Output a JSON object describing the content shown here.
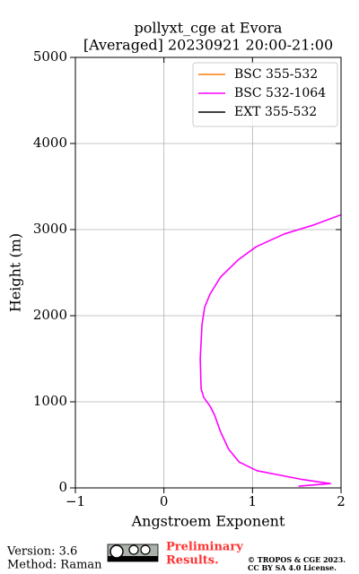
{
  "chart_data": {
    "type": "line",
    "title": "pollyxt_cge at Evora",
    "subtitle": "[Averaged] 20230921 20:00-21:00",
    "xlabel": "Angstroem Exponent",
    "ylabel": "Height (m)",
    "heights": [
      20,
      50,
      100,
      150,
      200,
      300,
      450,
      650,
      850,
      950,
      1050,
      1150,
      1500,
      1900,
      2100,
      2250,
      2450,
      2650,
      2800,
      2950,
      3050,
      3180
    ],
    "series": [
      {
        "name": "BSC 355-532",
        "color": "#ff7f0e",
        "values": [
          null,
          null,
          null,
          null,
          null,
          null,
          null,
          null,
          null,
          null,
          null,
          null,
          null,
          null,
          null,
          null,
          null,
          null,
          null,
          null,
          null,
          null
        ]
      },
      {
        "name": "BSC 532-1064",
        "color": "#ff00ff",
        "values": [
          1.52,
          1.88,
          1.55,
          1.3,
          1.05,
          0.85,
          0.73,
          0.64,
          0.57,
          0.52,
          0.45,
          0.42,
          0.41,
          0.43,
          0.46,
          0.52,
          0.64,
          0.84,
          1.04,
          1.36,
          1.68,
          2.02
        ]
      },
      {
        "name": "EXT 355-532",
        "color": "#000000",
        "values": [
          null,
          null,
          null,
          null,
          null,
          null,
          null,
          null,
          null,
          null,
          null,
          null,
          null,
          null,
          null,
          null,
          null,
          null,
          null,
          null,
          null,
          null
        ]
      }
    ],
    "xlim": [
      -1,
      2
    ],
    "xticks": [
      {
        "value": -1,
        "label": "−1"
      },
      0,
      1,
      2
    ],
    "ylim": [
      0,
      5000
    ],
    "yticks": [
      0,
      1000,
      2000,
      3000,
      4000,
      5000
    ],
    "grid": true,
    "legend": "upper right"
  },
  "footer": {
    "version": "Version: 3.6",
    "method": "Method: Raman",
    "notice": [
      "Preliminary",
      "Results."
    ],
    "copyright": [
      "© TROPOS & CGE 2023.",
      "CC BY SA 4.0 License."
    ]
  }
}
